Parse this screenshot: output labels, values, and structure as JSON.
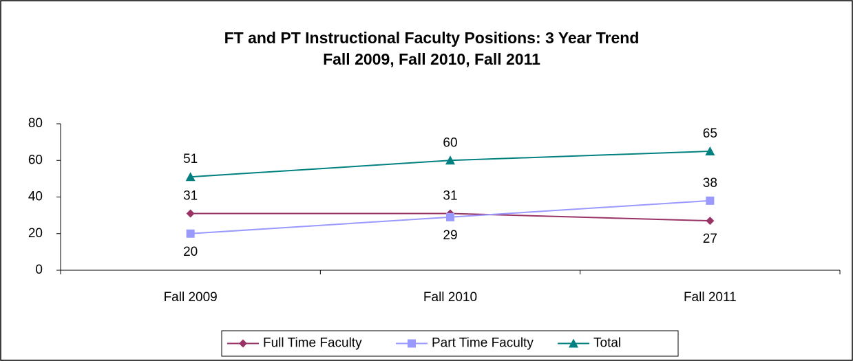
{
  "chart_data": {
    "type": "line",
    "title": "FT and PT Instructional Faculty Positions:  3 Year Trend",
    "subtitle": "Fall 2009, Fall 2010, Fall 2011",
    "categories": [
      "Fall 2009",
      "Fall 2010",
      "Fall 2011"
    ],
    "series": [
      {
        "name": "Full Time Faculty",
        "color": "#993366",
        "marker": "diamond",
        "values": [
          31,
          31,
          27
        ]
      },
      {
        "name": "Part Time Faculty",
        "color": "#9999ff",
        "marker": "square",
        "values": [
          20,
          29,
          38
        ]
      },
      {
        "name": "Total",
        "color": "#008080",
        "marker": "triangle",
        "values": [
          51,
          60,
          65
        ]
      }
    ],
    "ylim": [
      0,
      80
    ],
    "yticks": [
      0,
      20,
      40,
      60,
      80
    ],
    "grid": false,
    "legend": "bottom"
  }
}
